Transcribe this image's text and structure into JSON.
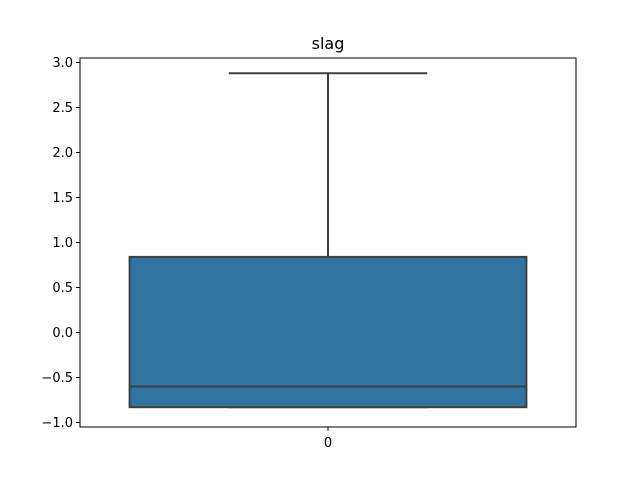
{
  "chart_data": {
    "type": "box",
    "title": "slag",
    "xlabel": "",
    "ylabel": "",
    "categories": [
      "0"
    ],
    "ylim": [
      -1.05,
      3.05
    ],
    "yticks": [
      -1.0,
      -0.5,
      0.0,
      0.5,
      1.0,
      1.5,
      2.0,
      2.5,
      3.0
    ],
    "ytick_labels": [
      "−1.0",
      "−0.5",
      "0.0",
      "0.5",
      "1.0",
      "1.5",
      "2.0",
      "2.5",
      "3.0"
    ],
    "boxes": [
      {
        "category": "0",
        "whisker_low": -0.83,
        "q1": -0.83,
        "median": -0.6,
        "q3": 0.84,
        "whisker_high": 2.88
      }
    ],
    "colors": {
      "box_fill": "#3274a1",
      "line": "#3f3f3f"
    },
    "grid": false,
    "legend": "none"
  }
}
